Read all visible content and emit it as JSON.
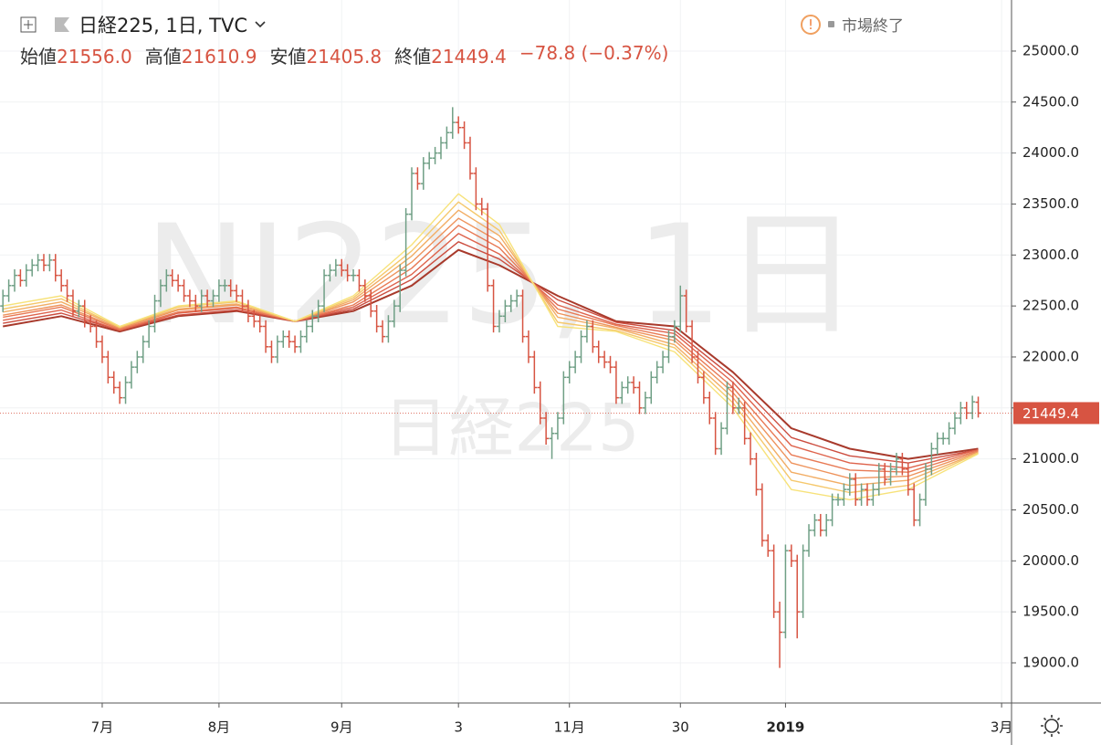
{
  "chart_data": {
    "type": "ohlc",
    "title": "日経225, 1日, TVC",
    "status": "市場終了",
    "watermark": "NI225, 1日",
    "watermark_sub": "日経225",
    "ohlc_labels": [
      "始値",
      "高値",
      "安値",
      "終値"
    ],
    "last_value_labels": [
      "21556.0",
      "21610.9",
      "21405.8",
      "21449.4"
    ],
    "change_label": "−78.8 (−0.37%)",
    "up_color": "#6f9f85",
    "down_color": "#d75442",
    "bars": [
      [
        22500,
        22660,
        22440,
        22600
      ],
      [
        22600,
        22760,
        22540,
        22700
      ],
      [
        22700,
        22860,
        22640,
        22800
      ],
      [
        22800,
        22860,
        22690,
        22750
      ],
      [
        22750,
        22910,
        22690,
        22850
      ],
      [
        22850,
        22960,
        22790,
        22900
      ],
      [
        22900,
        23010,
        22840,
        22950
      ],
      [
        22950,
        23010,
        22840,
        22900
      ],
      [
        22900,
        23010,
        22840,
        22950
      ],
      [
        22950,
        23010,
        22740,
        22800
      ],
      [
        22800,
        22860,
        22640,
        22700
      ],
      [
        22700,
        22760,
        22540,
        22600
      ],
      [
        22600,
        22660,
        22390,
        22450
      ],
      [
        22450,
        22560,
        22390,
        22500
      ],
      [
        22500,
        22560,
        22290,
        22350
      ],
      [
        22350,
        22410,
        22240,
        22300
      ],
      [
        22300,
        22360,
        22090,
        22150
      ],
      [
        22150,
        22210,
        21940,
        22000
      ],
      [
        22000,
        22060,
        21740,
        21800
      ],
      [
        21800,
        21860,
        21640,
        21700
      ],
      [
        21700,
        21760,
        21540,
        21600
      ],
      [
        21600,
        21810,
        21540,
        21750
      ],
      [
        21750,
        21960,
        21690,
        21900
      ],
      [
        21900,
        22060,
        21840,
        22000
      ],
      [
        22000,
        22210,
        21940,
        22150
      ],
      [
        22150,
        22360,
        22090,
        22300
      ],
      [
        22300,
        22610,
        22240,
        22550
      ],
      [
        22550,
        22760,
        22490,
        22700
      ],
      [
        22700,
        22860,
        22640,
        22800
      ],
      [
        22800,
        22860,
        22690,
        22750
      ],
      [
        22750,
        22810,
        22640,
        22700
      ],
      [
        22700,
        22760,
        22540,
        22600
      ],
      [
        22600,
        22660,
        22490,
        22550
      ],
      [
        22550,
        22610,
        22440,
        22500
      ],
      [
        22500,
        22660,
        22440,
        22600
      ],
      [
        22600,
        22660,
        22490,
        22550
      ],
      [
        22550,
        22660,
        22490,
        22600
      ],
      [
        22600,
        22760,
        22540,
        22700
      ],
      [
        22700,
        22760,
        22640,
        22700
      ],
      [
        22700,
        22760,
        22590,
        22650
      ],
      [
        22650,
        22710,
        22540,
        22600
      ],
      [
        22600,
        22660,
        22440,
        22500
      ],
      [
        22500,
        22560,
        22340,
        22400
      ],
      [
        22400,
        22460,
        22290,
        22350
      ],
      [
        22350,
        22410,
        22240,
        22300
      ],
      [
        22300,
        22360,
        22040,
        22100
      ],
      [
        22100,
        22160,
        21940,
        22000
      ],
      [
        22000,
        22210,
        21940,
        22150
      ],
      [
        22150,
        22260,
        22090,
        22200
      ],
      [
        22200,
        22260,
        22090,
        22150
      ],
      [
        22150,
        22210,
        22040,
        22100
      ],
      [
        22100,
        22260,
        22040,
        22200
      ],
      [
        22200,
        22360,
        22140,
        22300
      ],
      [
        22300,
        22460,
        22240,
        22400
      ],
      [
        22400,
        22560,
        22340,
        22500
      ],
      [
        22500,
        22860,
        22440,
        22800
      ],
      [
        22800,
        22910,
        22740,
        22850
      ],
      [
        22850,
        22960,
        22790,
        22900
      ],
      [
        22900,
        22960,
        22790,
        22850
      ],
      [
        22850,
        22910,
        22740,
        22800
      ],
      [
        22800,
        22860,
        22740,
        22800
      ],
      [
        22800,
        22860,
        22640,
        22700
      ],
      [
        22700,
        22760,
        22540,
        22600
      ],
      [
        22600,
        22660,
        22390,
        22450
      ],
      [
        22450,
        22510,
        22240,
        22300
      ],
      [
        22300,
        22360,
        22140,
        22200
      ],
      [
        22200,
        22410,
        22140,
        22350
      ],
      [
        22350,
        22560,
        22290,
        22500
      ],
      [
        22500,
        22910,
        22440,
        22850
      ],
      [
        22850,
        23460,
        22790,
        23400
      ],
      [
        23400,
        23860,
        23340,
        23800
      ],
      [
        23800,
        23860,
        23640,
        23700
      ],
      [
        23700,
        23960,
        23640,
        23900
      ],
      [
        23900,
        24010,
        23840,
        23950
      ],
      [
        23950,
        24060,
        23890,
        24000
      ],
      [
        24000,
        24160,
        23940,
        24100
      ],
      [
        24100,
        24260,
        24040,
        24200
      ],
      [
        24200,
        24450,
        24140,
        24300
      ],
      [
        24300,
        24360,
        24190,
        24250
      ],
      [
        24250,
        24310,
        24040,
        24100
      ],
      [
        24100,
        24160,
        23740,
        23800
      ],
      [
        23800,
        23860,
        23440,
        23500
      ],
      [
        23500,
        23560,
        23390,
        23450
      ],
      [
        23450,
        23510,
        22640,
        22700
      ],
      [
        22700,
        22760,
        22240,
        22300
      ],
      [
        22300,
        22460,
        22240,
        22400
      ],
      [
        22400,
        22560,
        22340,
        22500
      ],
      [
        22500,
        22610,
        22440,
        22550
      ],
      [
        22550,
        22660,
        22490,
        22600
      ],
      [
        22600,
        22660,
        22140,
        22200
      ],
      [
        22200,
        22260,
        21940,
        22000
      ],
      [
        22000,
        22060,
        21640,
        21700
      ],
      [
        21700,
        21760,
        21340,
        21400
      ],
      [
        21400,
        21460,
        21140,
        21200
      ],
      [
        21200,
        21310,
        21000,
        21250
      ],
      [
        21250,
        21460,
        21190,
        21400
      ],
      [
        21400,
        21860,
        21340,
        21800
      ],
      [
        21800,
        21960,
        21740,
        21900
      ],
      [
        21900,
        22060,
        21840,
        22000
      ],
      [
        22000,
        22260,
        21940,
        22200
      ],
      [
        22200,
        22360,
        22140,
        22300
      ],
      [
        22300,
        22360,
        22040,
        22100
      ],
      [
        22100,
        22160,
        21940,
        22000
      ],
      [
        22000,
        22060,
        21890,
        21950
      ],
      [
        21950,
        22010,
        21840,
        21900
      ],
      [
        21900,
        21960,
        21540,
        21600
      ],
      [
        21600,
        21760,
        21540,
        21700
      ],
      [
        21700,
        21810,
        21640,
        21750
      ],
      [
        21750,
        21810,
        21640,
        21700
      ],
      [
        21700,
        21760,
        21440,
        21500
      ],
      [
        21500,
        21660,
        21440,
        21600
      ],
      [
        21600,
        21860,
        21540,
        21800
      ],
      [
        21800,
        21960,
        21740,
        21900
      ],
      [
        21900,
        22060,
        21840,
        22000
      ],
      [
        22000,
        22260,
        21940,
        22200
      ],
      [
        22200,
        22360,
        22140,
        22300
      ],
      [
        22300,
        22700,
        22240,
        22600
      ],
      [
        22600,
        22660,
        22240,
        22300
      ],
      [
        22300,
        22360,
        21940,
        22000
      ],
      [
        22000,
        22060,
        21740,
        21800
      ],
      [
        21800,
        21860,
        21540,
        21600
      ],
      [
        21600,
        21660,
        21340,
        21400
      ],
      [
        21400,
        21460,
        21040,
        21100
      ],
      [
        21100,
        21360,
        21040,
        21300
      ],
      [
        21300,
        21760,
        21240,
        21700
      ],
      [
        21700,
        21760,
        21440,
        21500
      ],
      [
        21500,
        21600,
        21440,
        21500
      ],
      [
        21500,
        21560,
        21140,
        21200
      ],
      [
        21200,
        21260,
        20940,
        21000
      ],
      [
        21000,
        21060,
        20640,
        20700
      ],
      [
        20700,
        20760,
        20140,
        20200
      ],
      [
        20200,
        20260,
        20040,
        20100
      ],
      [
        20100,
        20160,
        19440,
        19500
      ],
      [
        19500,
        19600,
        18950,
        19300
      ],
      [
        19300,
        20160,
        19240,
        20100
      ],
      [
        20100,
        20160,
        19940,
        20000
      ],
      [
        20000,
        20060,
        19240,
        19500
      ],
      [
        19500,
        20160,
        19440,
        20100
      ],
      [
        20100,
        20360,
        20040,
        20300
      ],
      [
        20300,
        20460,
        20240,
        20400
      ],
      [
        20400,
        20460,
        20240,
        20300
      ],
      [
        20300,
        20460,
        20240,
        20400
      ],
      [
        20400,
        20660,
        20340,
        20600
      ],
      [
        20600,
        20660,
        20540,
        20600
      ],
      [
        20600,
        20760,
        20540,
        20700
      ],
      [
        20700,
        20860,
        20640,
        20800
      ],
      [
        20800,
        20860,
        20540,
        20600
      ],
      [
        20600,
        20760,
        20540,
        20700
      ],
      [
        20700,
        20760,
        20540,
        20600
      ],
      [
        20600,
        20760,
        20540,
        20700
      ],
      [
        20700,
        20960,
        20640,
        20900
      ],
      [
        20900,
        20960,
        20740,
        20800
      ],
      [
        20800,
        20960,
        20740,
        20900
      ],
      [
        20900,
        21060,
        20840,
        21000
      ],
      [
        21000,
        21060,
        20840,
        20900
      ],
      [
        20900,
        20960,
        20640,
        20700
      ],
      [
        20700,
        20760,
        20340,
        20400
      ],
      [
        20400,
        20660,
        20340,
        20600
      ],
      [
        20600,
        20960,
        20540,
        20900
      ],
      [
        20900,
        21160,
        20840,
        21100
      ],
      [
        21100,
        21260,
        21040,
        21200
      ],
      [
        21200,
        21260,
        21140,
        21200
      ],
      [
        21200,
        21360,
        21140,
        21300
      ],
      [
        21300,
        21460,
        21240,
        21400
      ],
      [
        21400,
        21560,
        21340,
        21500
      ],
      [
        21500,
        21560,
        21390,
        21450
      ],
      [
        21450,
        21620,
        21390,
        21560
      ],
      [
        21556.0,
        21610.9,
        21405.8,
        21449.4
      ]
    ],
    "ma_x": [
      0,
      10,
      20,
      30,
      40,
      50,
      60,
      70,
      78,
      85,
      95,
      105,
      115,
      125,
      135,
      145,
      155,
      167
    ],
    "series": [
      {
        "color": "#f7e27a",
        "values": [
          22500,
          22600,
          22300,
          22500,
          22550,
          22350,
          22600,
          23100,
          23600,
          23300,
          22300,
          22250,
          22050,
          21500,
          20700,
          20600,
          20700,
          21050
        ]
      },
      {
        "color": "#f5c86c",
        "values": [
          22470,
          22570,
          22290,
          22490,
          22540,
          22350,
          22580,
          23040,
          23520,
          23240,
          22340,
          22260,
          22090,
          21550,
          20790,
          20670,
          20740,
          21060
        ]
      },
      {
        "color": "#f2ad64",
        "values": [
          22440,
          22540,
          22290,
          22470,
          22520,
          22350,
          22560,
          22990,
          23440,
          23190,
          22390,
          22280,
          22120,
          21600,
          20870,
          20740,
          20790,
          21060
        ]
      },
      {
        "color": "#ee935c",
        "values": [
          22410,
          22510,
          22280,
          22460,
          22510,
          22350,
          22540,
          22930,
          23360,
          23130,
          22430,
          22290,
          22160,
          21650,
          20960,
          20810,
          20830,
          21070
        ]
      },
      {
        "color": "#e87a55",
        "values": [
          22390,
          22490,
          22270,
          22440,
          22490,
          22350,
          22510,
          22870,
          23290,
          23070,
          22470,
          22310,
          22190,
          21700,
          21040,
          20890,
          20870,
          21080
        ]
      },
      {
        "color": "#de634c",
        "values": [
          22360,
          22460,
          22260,
          22430,
          22480,
          22350,
          22490,
          22810,
          23210,
          23010,
          22510,
          22320,
          22230,
          21750,
          21130,
          20960,
          20910,
          21090
        ]
      },
      {
        "color": "#cc4d3f",
        "values": [
          22330,
          22430,
          22260,
          22410,
          22460,
          22350,
          22470,
          22760,
          23130,
          22960,
          22560,
          22340,
          22260,
          21800,
          21210,
          21030,
          20960,
          21090
        ]
      },
      {
        "color": "#a83a2c",
        "values": [
          22300,
          22400,
          22250,
          22400,
          22450,
          22350,
          22450,
          22700,
          23050,
          22900,
          22600,
          22350,
          22300,
          21850,
          21300,
          21100,
          21000,
          21100
        ]
      }
    ],
    "xlim": [
      -0.5,
      172.7
    ],
    "xticks": [
      {
        "value": 17,
        "label": "7月"
      },
      {
        "value": 37,
        "label": "8月"
      },
      {
        "value": 58,
        "label": "9月"
      },
      {
        "value": 78,
        "label": "3"
      },
      {
        "value": 97,
        "label": "11月"
      },
      {
        "value": 116,
        "label": "30"
      },
      {
        "value": 134,
        "label": "2019"
      },
      {
        "value": 171,
        "label": "3月"
      }
    ],
    "ylim": [
      18606,
      25501
    ],
    "yticks": [
      {
        "value": 19000,
        "label": "19000.0"
      },
      {
        "value": 19500,
        "label": "19500.0"
      },
      {
        "value": 20000,
        "label": "20000.0"
      },
      {
        "value": 20500,
        "label": "20500.0"
      },
      {
        "value": 21000,
        "label": "21000.0"
      },
      {
        "value": 21500,
        "label": "21500.0"
      },
      {
        "value": 22000,
        "label": "22000.0"
      },
      {
        "value": 22500,
        "label": "22500.0"
      },
      {
        "value": 23000,
        "label": "23000.0"
      },
      {
        "value": 23500,
        "label": "23500.0"
      },
      {
        "value": 24000,
        "label": "24000.0"
      },
      {
        "value": 24500,
        "label": "24500.0"
      },
      {
        "value": 25000,
        "label": "25000.0"
      }
    ],
    "grid": true
  }
}
